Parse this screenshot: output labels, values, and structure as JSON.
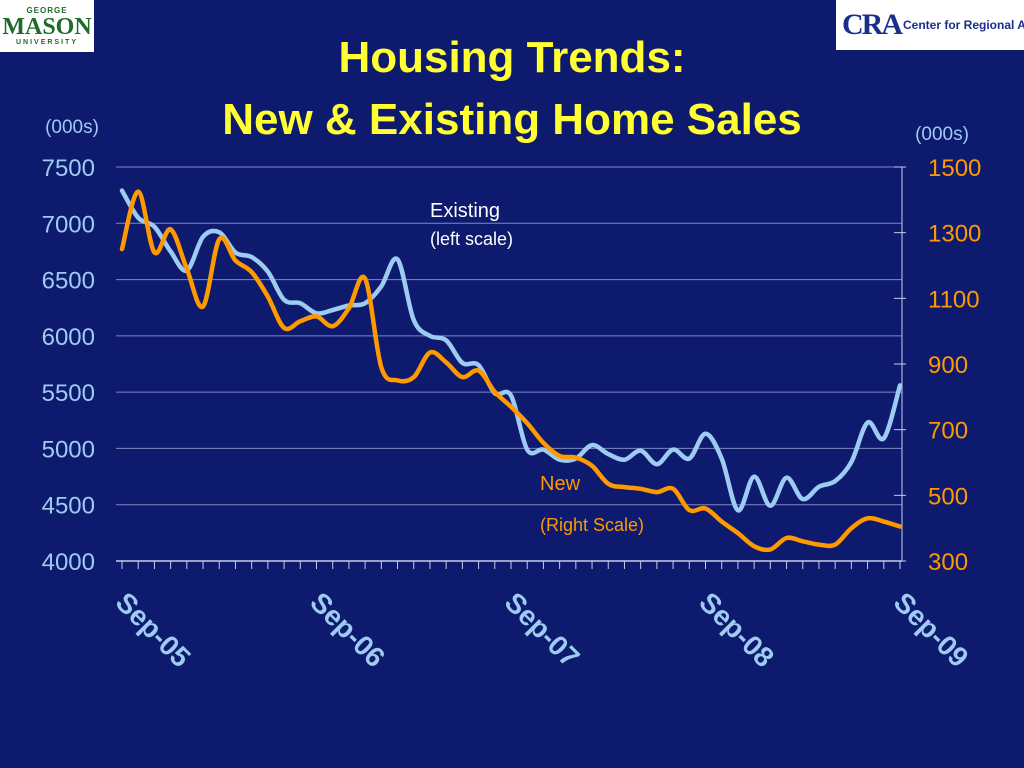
{
  "header": {
    "title_line1": "Housing Trends:",
    "title_line2": "New & Existing Home Sales",
    "logo_left": {
      "line1": "GEORGE",
      "line2": "MASON",
      "line3": "UNIVERSITY"
    },
    "logo_right": {
      "mark": "CRA",
      "text": "Center for Regional Analysis"
    }
  },
  "colors": {
    "background": "#0d1a6e",
    "title": "#ffff33",
    "existing": "#9ecbf2",
    "new": "#ff9900",
    "left_ticks": "#9ecbf2",
    "right_ticks": "#ff9900",
    "grid": "#7f88c4"
  },
  "chart_data": {
    "type": "line",
    "title": "Housing Trends: New & Existing Home Sales",
    "left_axis": {
      "unit_label": "(000s)",
      "range": [
        4000,
        7500
      ],
      "ticks": [
        "7500",
        "7000",
        "6500",
        "6000",
        "5500",
        "5000",
        "4500",
        "4000"
      ]
    },
    "right_axis": {
      "unit_label": "(000s)",
      "range": [
        300,
        1500
      ],
      "ticks": [
        "1500",
        "1300",
        "1100",
        "900",
        "700",
        "500",
        "300"
      ]
    },
    "x_axis": {
      "labels": [
        "Sep-05",
        "Sep-06",
        "Sep-07",
        "Sep-08",
        "Sep-09"
      ],
      "label_index": [
        0,
        12,
        24,
        36,
        48
      ]
    },
    "grid": true,
    "series": [
      {
        "name": "Existing",
        "note": "(left scale)",
        "axis": "left",
        "values": [
          7290,
          7050,
          6970,
          6750,
          6580,
          6880,
          6920,
          6740,
          6700,
          6570,
          6320,
          6290,
          6200,
          6230,
          6270,
          6290,
          6440,
          6680,
          6140,
          6000,
          5960,
          5760,
          5740,
          5490,
          5470,
          4990,
          4990,
          4900,
          4910,
          5030,
          4950,
          4900,
          4980,
          4860,
          4990,
          4910,
          5130,
          4910,
          4450,
          4750,
          4490,
          4740,
          4550,
          4660,
          4710,
          4880,
          5230,
          5090,
          5560
        ]
      },
      {
        "name": "New",
        "note": "(Right Scale)",
        "axis": "right",
        "values": [
          1250,
          1425,
          1240,
          1310,
          1190,
          1075,
          1280,
          1215,
          1180,
          1105,
          1010,
          1030,
          1045,
          1015,
          1070,
          1160,
          890,
          850,
          860,
          935,
          905,
          860,
          880,
          815,
          770,
          720,
          660,
          620,
          615,
          590,
          535,
          525,
          520,
          510,
          520,
          455,
          460,
          420,
          385,
          345,
          335,
          370,
          360,
          350,
          350,
          400,
          430,
          420,
          405
        ]
      }
    ]
  }
}
